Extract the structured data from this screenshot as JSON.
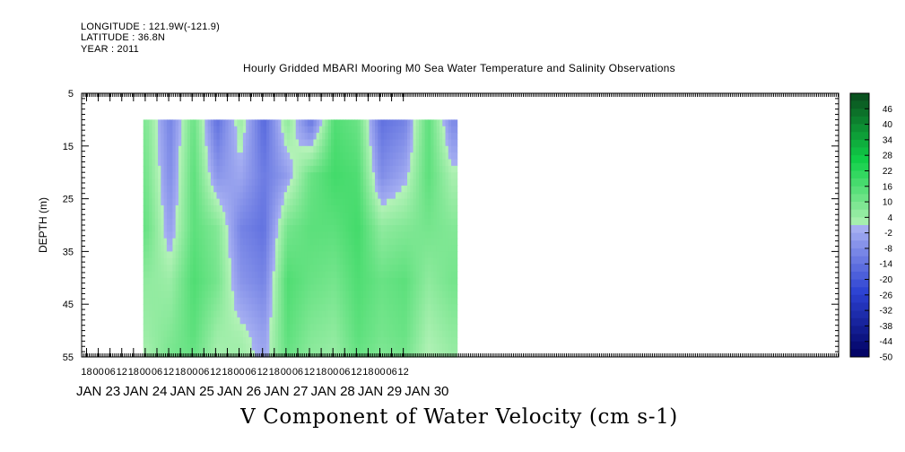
{
  "header": {
    "longitude": "LONGITUDE : 121.9W(-121.9)",
    "latitude": "LATITUDE : 36.8N",
    "year": "YEAR : 2011"
  },
  "title": "Hourly Gridded MBARI Mooring M0 Sea Water Temperature and Salinity Observations",
  "bottom_title": "V Component of Water Velocity (cm s-1)",
  "chart_data": {
    "type": "heatmap",
    "ylabel": "DEPTH (m)",
    "ylim": [
      5,
      55
    ],
    "y_inverted": true,
    "y_ticks": [
      "5",
      "15",
      "25",
      "35",
      "45",
      "55"
    ],
    "x_hour_ticks": [
      "18",
      "00",
      "06",
      "12",
      "18",
      "00",
      "06",
      "12",
      "18",
      "00",
      "06",
      "12",
      "18",
      "00",
      "06",
      "12",
      "18",
      "00",
      "06",
      "12",
      "18",
      "00",
      "06",
      "12",
      "18",
      "00",
      "06",
      "12"
    ],
    "x_day_labels": [
      "JAN 23",
      "JAN 24",
      "JAN 25",
      "JAN 26",
      "JAN 27",
      "JAN 28",
      "JAN 29",
      "JAN 30"
    ],
    "data_start": "JAN 23 23:00",
    "data_end": "JAN 30 15:00",
    "data_top_depth": 10,
    "depths": [
      10,
      20,
      30,
      40,
      50,
      55
    ],
    "times": [
      "JAN 24 00:00",
      "JAN 24 12:00",
      "JAN 25 00:00",
      "JAN 25 12:00",
      "JAN 26 00:00",
      "JAN 26 12:00",
      "JAN 27 00:00",
      "JAN 27 12:00",
      "JAN 28 00:00",
      "JAN 28 12:00",
      "JAN 29 00:00",
      "JAN 29 12:00",
      "JAN 30 00:00",
      "JAN 30 12:00"
    ],
    "v_values": [
      [
        8,
        -10,
        12,
        -14,
        4,
        -16,
        6,
        -12,
        16,
        12,
        -14,
        -10,
        14,
        -8
      ],
      [
        10,
        -8,
        14,
        -6,
        -2,
        -12,
        -4,
        12,
        18,
        16,
        -8,
        -2,
        14,
        2
      ],
      [
        12,
        -4,
        14,
        8,
        -10,
        -14,
        10,
        14,
        14,
        18,
        6,
        8,
        10,
        8
      ],
      [
        6,
        4,
        16,
        10,
        -6,
        -10,
        16,
        12,
        10,
        16,
        12,
        14,
        6,
        10
      ],
      [
        4,
        8,
        14,
        4,
        2,
        -4,
        14,
        8,
        6,
        14,
        10,
        12,
        2,
        6
      ],
      [
        2,
        10,
        12,
        2,
        4,
        -2,
        12,
        6,
        4,
        12,
        8,
        10,
        0,
        4
      ]
    ],
    "colorbar_levels": [
      "46",
      "40",
      "34",
      "28",
      "22",
      "16",
      "10",
      "4",
      "-2",
      "-8",
      "-14",
      "-20",
      "-26",
      "-32",
      "-38",
      "-44",
      "-50"
    ],
    "colorbar_range": [
      -50,
      52
    ],
    "colorbar_step": 3,
    "colors": {
      "neg_strong": "#000060",
      "neg_mid": "#2c42d2",
      "neg_weak": "#a7b0f2",
      "pos_weak": "#b5f2b8",
      "pos_mid": "#10d048",
      "pos_strong": "#0a4a1c"
    }
  }
}
